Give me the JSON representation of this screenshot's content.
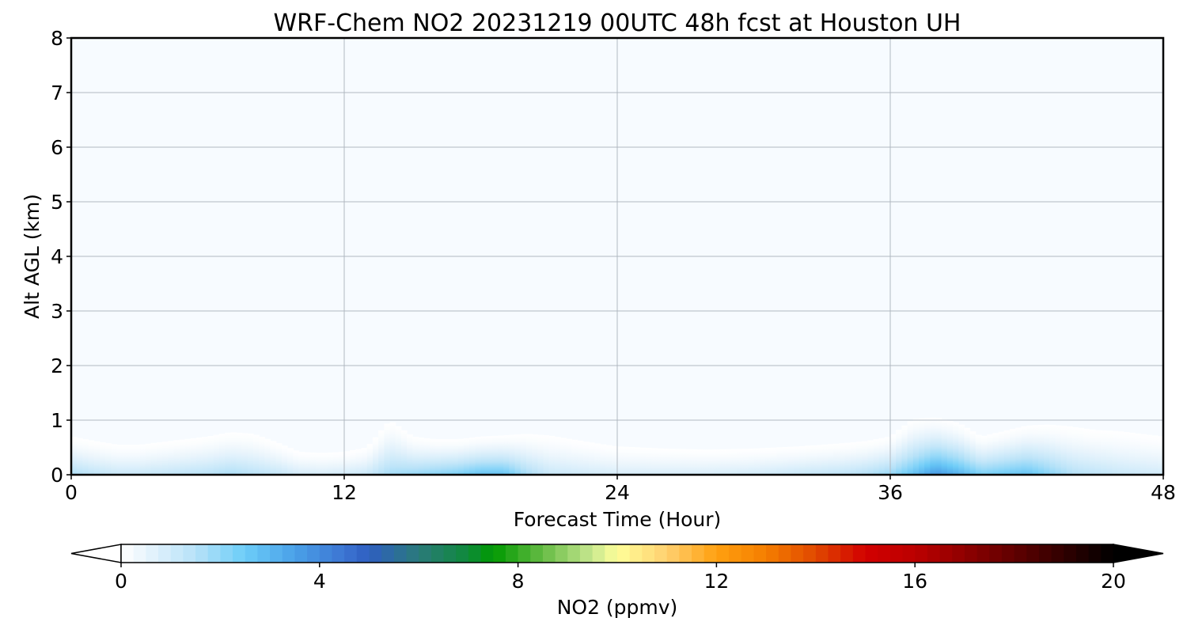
{
  "chart_data": [
    {
      "type": "heatmap",
      "title": "WRF-Chem NO2  20231219 00UTC 48h fcst at Houston UH",
      "xlabel": "Forecast Time (Hour)",
      "ylabel": "Alt AGL (km)",
      "xlim": [
        0,
        48
      ],
      "ylim": [
        0,
        8
      ],
      "x_ticks": [
        0,
        12,
        24,
        36,
        48
      ],
      "y_ticks": [
        0,
        1,
        2,
        3,
        4,
        5,
        6,
        7,
        8
      ],
      "grid": true,
      "background_color": "#f7fbff",
      "surface_layer": {
        "x": [
          0,
          1,
          2,
          3,
          4,
          6,
          7,
          8,
          9,
          10,
          11,
          12,
          13,
          14,
          15,
          16,
          17,
          18,
          19,
          20,
          21,
          22,
          23,
          24,
          26,
          28,
          30,
          32,
          34,
          35,
          36,
          37,
          38,
          39,
          40,
          41,
          42,
          43,
          44,
          45,
          46,
          47,
          48
        ],
        "top_km": [
          0.7,
          0.62,
          0.55,
          0.55,
          0.6,
          0.7,
          0.78,
          0.75,
          0.6,
          0.42,
          0.4,
          0.42,
          0.5,
          1.0,
          0.7,
          0.65,
          0.65,
          0.7,
          0.72,
          0.75,
          0.72,
          0.65,
          0.58,
          0.52,
          0.48,
          0.46,
          0.48,
          0.52,
          0.58,
          0.62,
          0.7,
          1.02,
          1.05,
          0.95,
          0.7,
          0.8,
          0.9,
          0.92,
          0.88,
          0.82,
          0.8,
          0.75,
          0.7
        ],
        "peak_ppmv": [
          1.5,
          1.2,
          1.0,
          1.0,
          1.1,
          1.3,
          1.5,
          1.3,
          1.1,
          0.8,
          0.7,
          0.8,
          1.0,
          1.6,
          1.8,
          2.0,
          2.2,
          2.6,
          2.6,
          1.6,
          1.0,
          0.9,
          0.8,
          0.7,
          0.7,
          0.7,
          0.8,
          1.0,
          1.2,
          1.4,
          1.8,
          2.6,
          3.6,
          3.0,
          2.2,
          2.4,
          2.6,
          2.0,
          1.4,
          1.2,
          1.0,
          0.9,
          0.8
        ]
      }
    },
    {
      "type": "colorbar",
      "label": "NO2  (ppmv)",
      "range": [
        0,
        20
      ],
      "ticks": [
        0,
        4,
        8,
        12,
        16,
        20
      ],
      "extend": "both",
      "color_stops": [
        {
          "value": 0.0,
          "color": "#ffffff"
        },
        {
          "value": 0.5,
          "color": "#e8f4fc"
        },
        {
          "value": 1.5,
          "color": "#b7e2f8"
        },
        {
          "value": 2.5,
          "color": "#6ccdf8"
        },
        {
          "value": 3.5,
          "color": "#4aa0e8"
        },
        {
          "value": 4.5,
          "color": "#3c75d2"
        },
        {
          "value": 5.0,
          "color": "#2f5ec0"
        },
        {
          "value": 6.0,
          "color": "#2a7a7a"
        },
        {
          "value": 7.0,
          "color": "#0f8a3a"
        },
        {
          "value": 7.5,
          "color": "#009a00"
        },
        {
          "value": 8.5,
          "color": "#66bb44"
        },
        {
          "value": 9.5,
          "color": "#c8e890"
        },
        {
          "value": 10.0,
          "color": "#ffff99"
        },
        {
          "value": 11.0,
          "color": "#ffd070"
        },
        {
          "value": 12.0,
          "color": "#ffa010"
        },
        {
          "value": 13.0,
          "color": "#f57e00"
        },
        {
          "value": 14.0,
          "color": "#e04800"
        },
        {
          "value": 15.0,
          "color": "#d20000"
        },
        {
          "value": 16.0,
          "color": "#bb0000"
        },
        {
          "value": 17.0,
          "color": "#8f0000"
        },
        {
          "value": 18.0,
          "color": "#600000"
        },
        {
          "value": 19.0,
          "color": "#300000"
        },
        {
          "value": 20.0,
          "color": "#000000"
        }
      ],
      "under_color": "#ffffff",
      "over_color": "#000000"
    }
  ]
}
